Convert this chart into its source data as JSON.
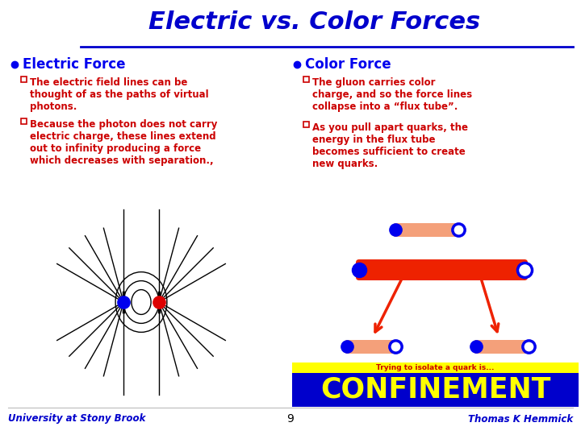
{
  "title": "Electric vs. Color Forces",
  "title_color": "#0000CC",
  "title_fontsize": 22,
  "bg_color": "#FFFFFF",
  "bullet_color": "#0000EE",
  "text_color": "#CC0000",
  "left_header": "Electric Force",
  "right_header": "Color Force",
  "left_bullets": [
    "The electric field lines can be\nthought of as the paths of virtual\nphotons.",
    "Because the photon does not carry\nelectric charge, these lines extend\nout to infinity producing a force\nwhich decreases with separation.,"
  ],
  "right_bullets": [
    "The gluon carries color\ncharge, and so the force lines\ncollapse into a “flux tube”.",
    "As you pull apart quarks, the\nenergy in the flux tube\nbecomes sufficient to create\nnew quarks."
  ],
  "confinement_text": "CONFINEMENT",
  "confinement_bg": "#0000CC",
  "confinement_fg": "#FFFF00",
  "confinement_stripe": "#FFFF00",
  "trying_text": "Trying to isolate a quark is...",
  "page_number": "9",
  "footer_left": "University at Stony Brook",
  "footer_right": "Thomas K Hemmick",
  "footer_color": "#0000CC",
  "header_line_color": "#0000CC",
  "quark_blue": "#0000EE",
  "quark_red": "#DD0000",
  "flux_tube_color": "#F4A07A",
  "flux_tube_red": "#EE2200",
  "arrow_color": "#EE2200"
}
